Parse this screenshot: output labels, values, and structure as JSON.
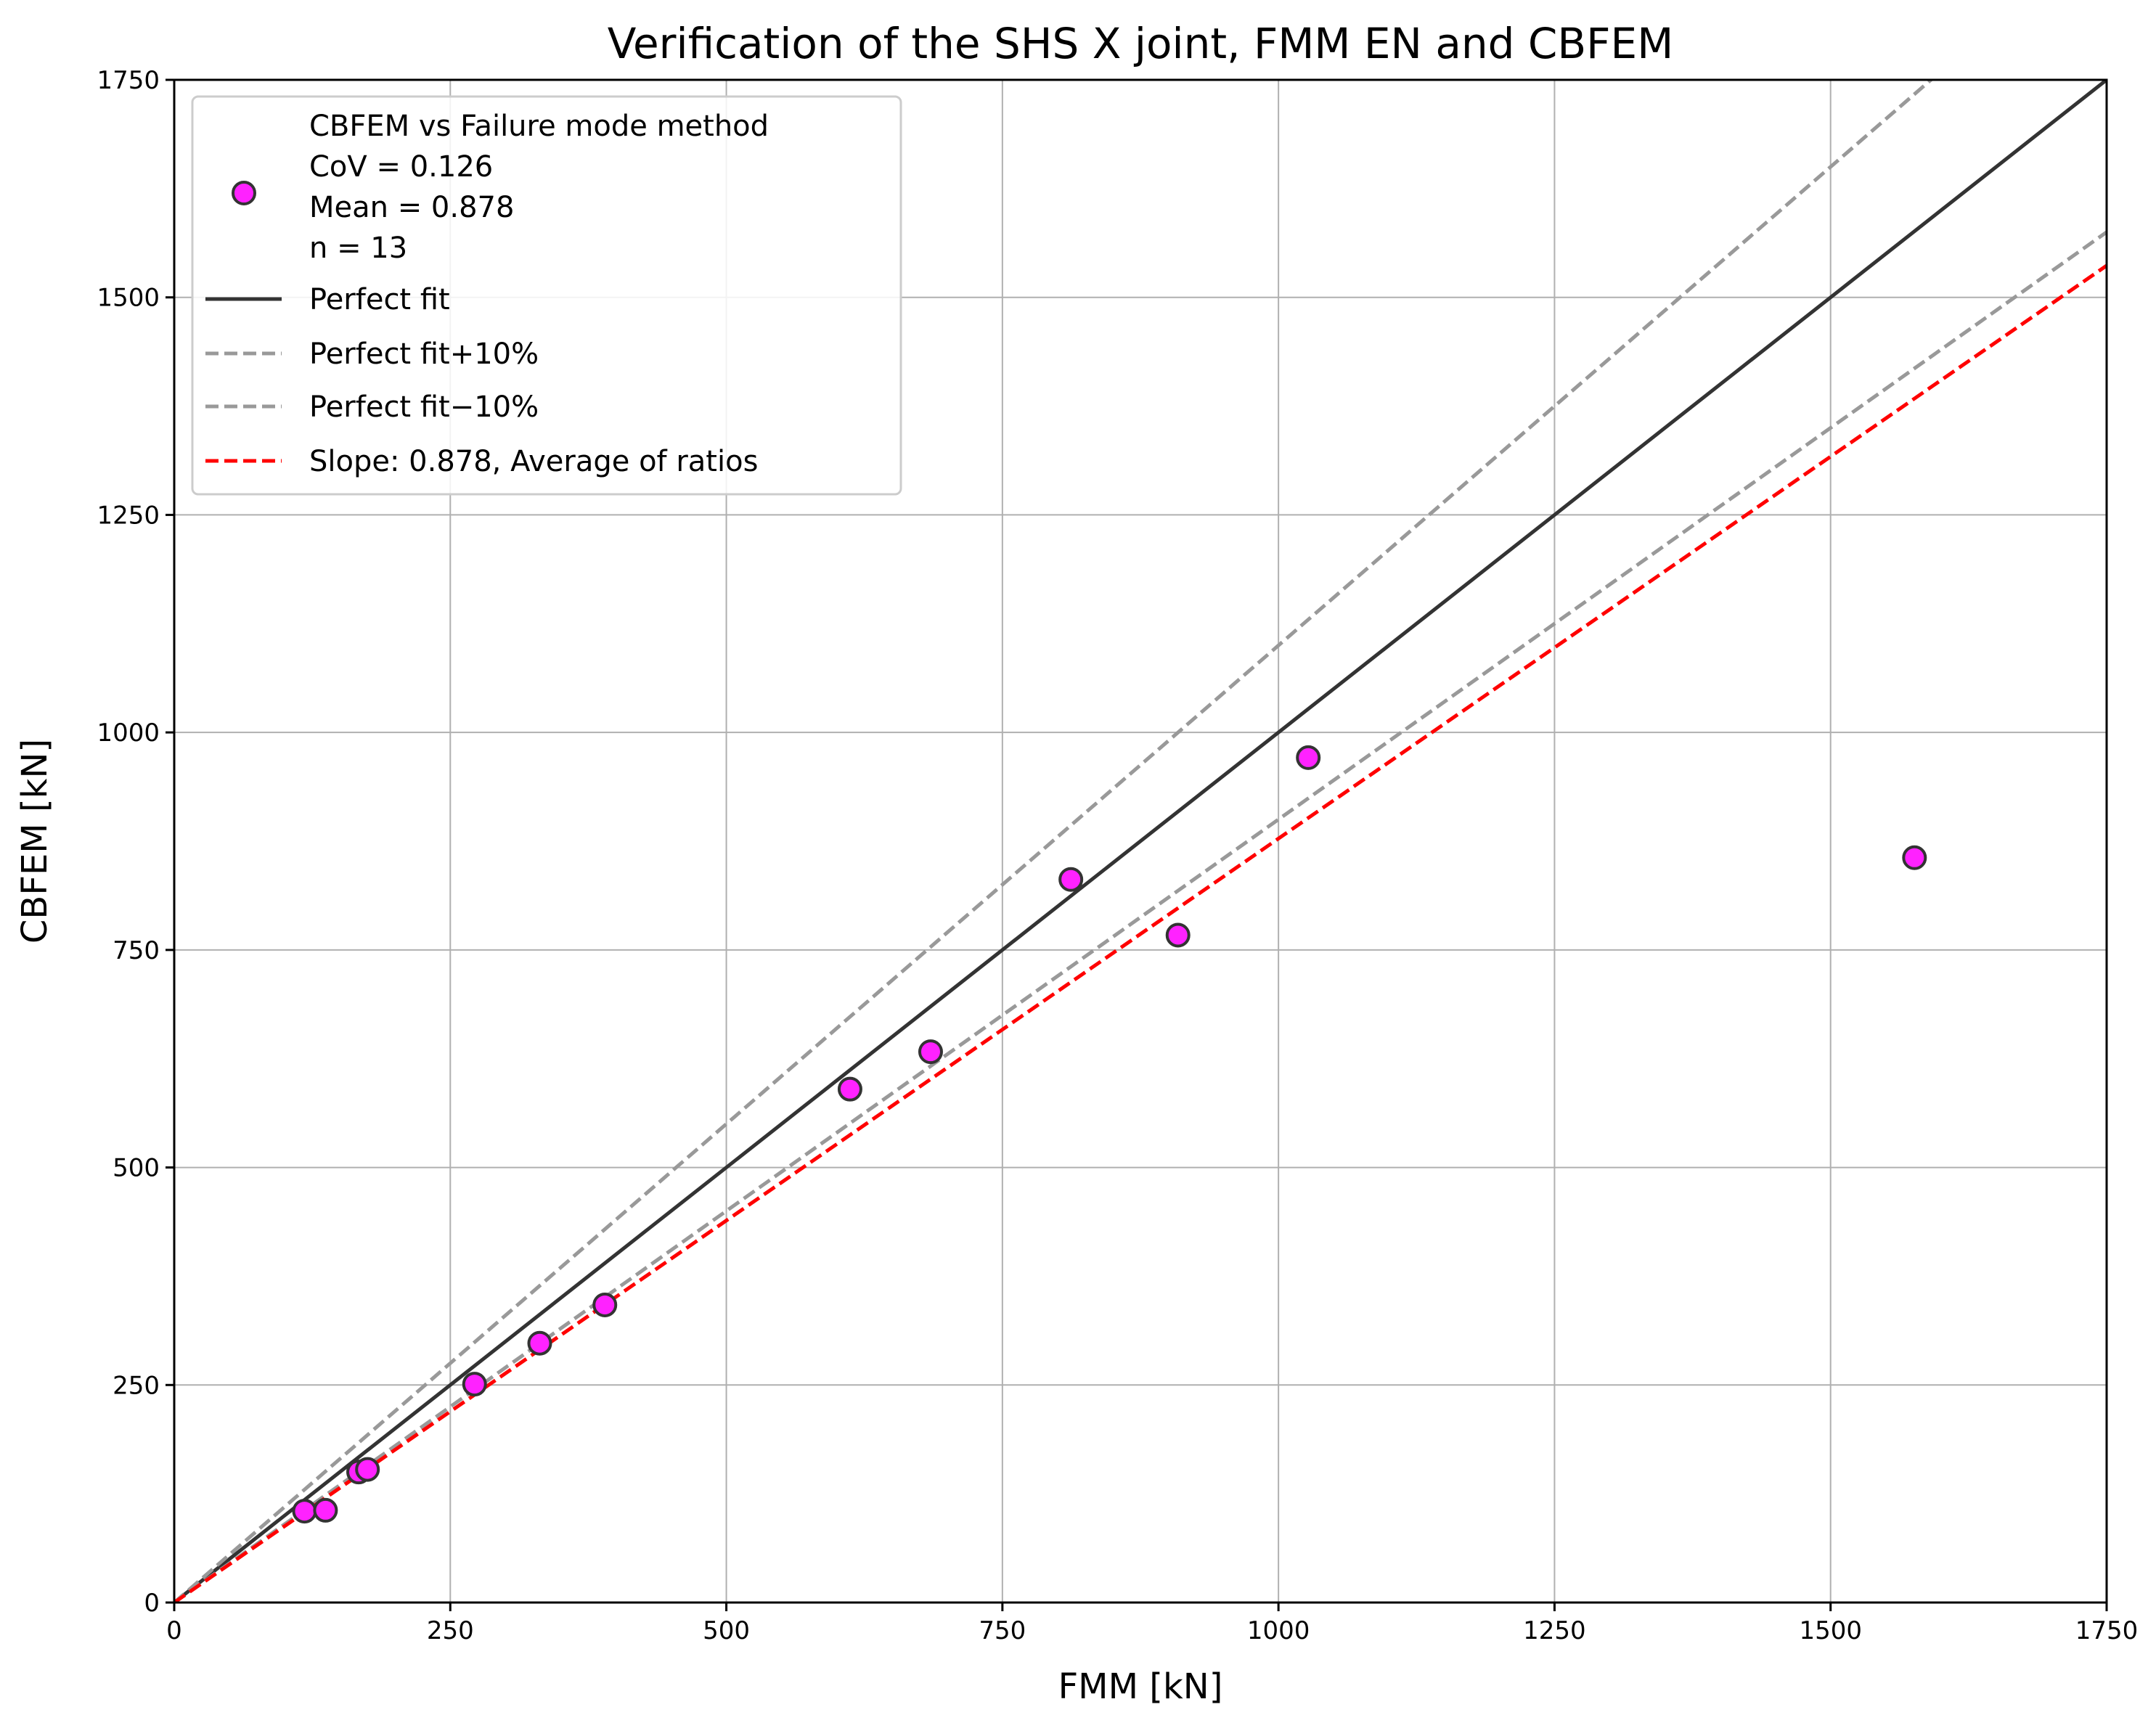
{
  "chart_data": {
    "type": "scatter",
    "title": "Verification of the SHS X joint, FMM EN and CBFEM",
    "xlabel": "FMM [kN]",
    "ylabel": "CBFEM [kN]",
    "xlim": [
      0,
      1750
    ],
    "ylim": [
      0,
      1750
    ],
    "xticks": [
      0,
      250,
      500,
      750,
      1000,
      1250,
      1500,
      1750
    ],
    "yticks": [
      0,
      250,
      500,
      750,
      1000,
      1250,
      1500,
      1750
    ],
    "grid": true,
    "legend_position": "top-left",
    "points": {
      "name": "CBFEM vs Failure mode method",
      "stats": [
        "CoV = 0.126",
        "Mean = 0.878",
        "n = 13"
      ],
      "color": "#ff22ff",
      "x": [
        118,
        137,
        167,
        175,
        272,
        331,
        390,
        612,
        685,
        812,
        909,
        1027,
        1576
      ],
      "y": [
        105,
        106,
        150,
        153,
        251,
        298,
        342,
        590,
        633,
        831,
        767,
        971,
        856
      ]
    },
    "lines": [
      {
        "name": "Perfect fit",
        "slope": 1.0,
        "style": "solid",
        "color": "#333333"
      },
      {
        "name": "Perfect fit+10%",
        "slope": 1.1,
        "style": "dashed",
        "color": "#999999"
      },
      {
        "name": "Perfect fit−10%",
        "slope": 0.9,
        "style": "dashed",
        "color": "#999999"
      },
      {
        "name": "Slope: 0.878, Average of ratios",
        "slope": 0.878,
        "style": "dashed",
        "color": "#ff0000"
      }
    ]
  }
}
